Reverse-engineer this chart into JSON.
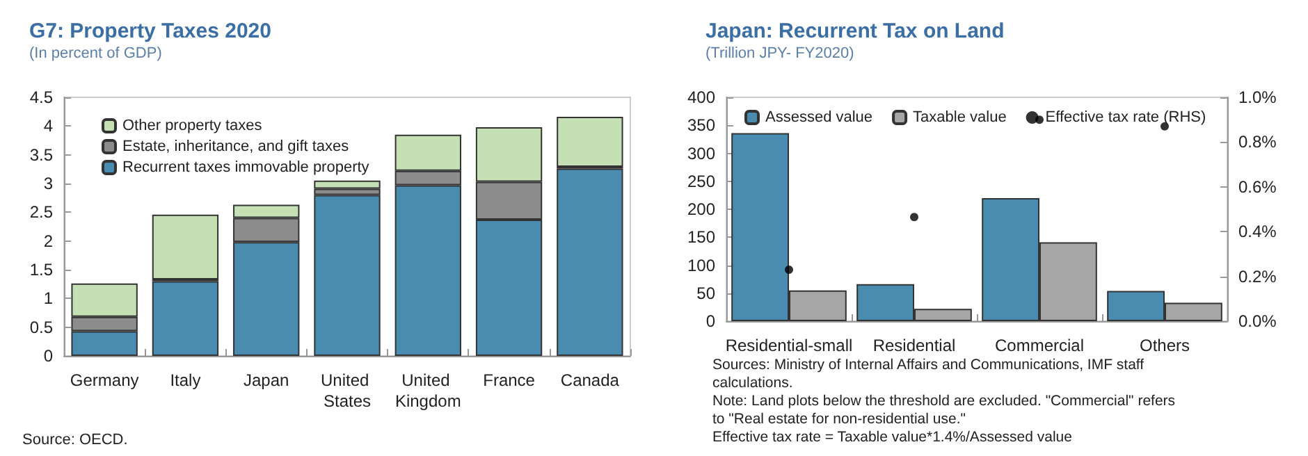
{
  "chart_data": [
    {
      "type": "bar",
      "title": "G7: Property Taxes 2020",
      "subtitle": "(In percent of GDP)",
      "stacked": true,
      "categories": [
        "Germany",
        "Italy",
        "Japan",
        "United States",
        "United Kingdom",
        "France",
        "Canada"
      ],
      "series": [
        {
          "name": "Recurrent taxes immovable property",
          "color": "#4a8bb0",
          "values": [
            0.43,
            1.3,
            1.98,
            2.8,
            2.97,
            2.37,
            3.26
          ]
        },
        {
          "name": "Estate, inheritance, and gift taxes",
          "color": "#8c8c8c",
          "values": [
            0.25,
            0.03,
            0.42,
            0.11,
            0.25,
            0.66,
            0.03
          ]
        },
        {
          "name": "Other property taxes",
          "color": "#c4e0b4",
          "values": [
            0.58,
            1.13,
            0.23,
            0.14,
            0.63,
            0.95,
            0.87
          ]
        }
      ],
      "ylim": [
        0,
        4.5
      ],
      "yticks": [
        0,
        0.5,
        1,
        1.5,
        2,
        2.5,
        3,
        3.5,
        4,
        4.5
      ],
      "legend": "top left",
      "annotations": [
        "Source: OECD."
      ]
    },
    {
      "type": "bar",
      "title": "Japan: Recurrent Tax on Land",
      "subtitle": "(Trillion JPY- FY2020)",
      "categories": [
        "Residential-small",
        "Residential",
        "Commercial",
        "Others"
      ],
      "series": [
        {
          "name": "Assessed value",
          "color": "#4a8bb0",
          "values": [
            336,
            66,
            220,
            54
          ]
        },
        {
          "name": "Taxable value",
          "color": "#a6a6a6",
          "values": [
            55,
            22,
            141,
            33
          ]
        },
        {
          "name": "Effective tax rate (RHS)",
          "type": "scatter",
          "axis": "y2",
          "color": "#000000",
          "values": [
            0.23,
            0.465,
            0.9,
            0.87
          ]
        }
      ],
      "ylim": [
        0,
        400
      ],
      "yticks": [
        0,
        50,
        100,
        150,
        200,
        250,
        300,
        350,
        400
      ],
      "y2lim": [
        0,
        1.0
      ],
      "y2ticks": [
        {
          "value": 0,
          "label": "0.0%"
        },
        {
          "value": 0.2,
          "label": "0.2%"
        },
        {
          "value": 0.4,
          "label": "0.4%"
        },
        {
          "value": 0.6,
          "label": "0.6%"
        },
        {
          "value": 0.8,
          "label": "0.8%"
        },
        {
          "value": 1.0,
          "label": "1.0%"
        }
      ],
      "marker": "circle",
      "legend": "top",
      "annotations": [
        "Sources: Ministry of Internal Affairs and Communications, IMF staff calculations.",
        "Note: Land plots below the threshold are excluded. \"Commercial\" refers to \"Real estate for non-residential use.\"",
        "Effective tax rate = Taxable value*1.4%/Assessed value"
      ]
    }
  ]
}
